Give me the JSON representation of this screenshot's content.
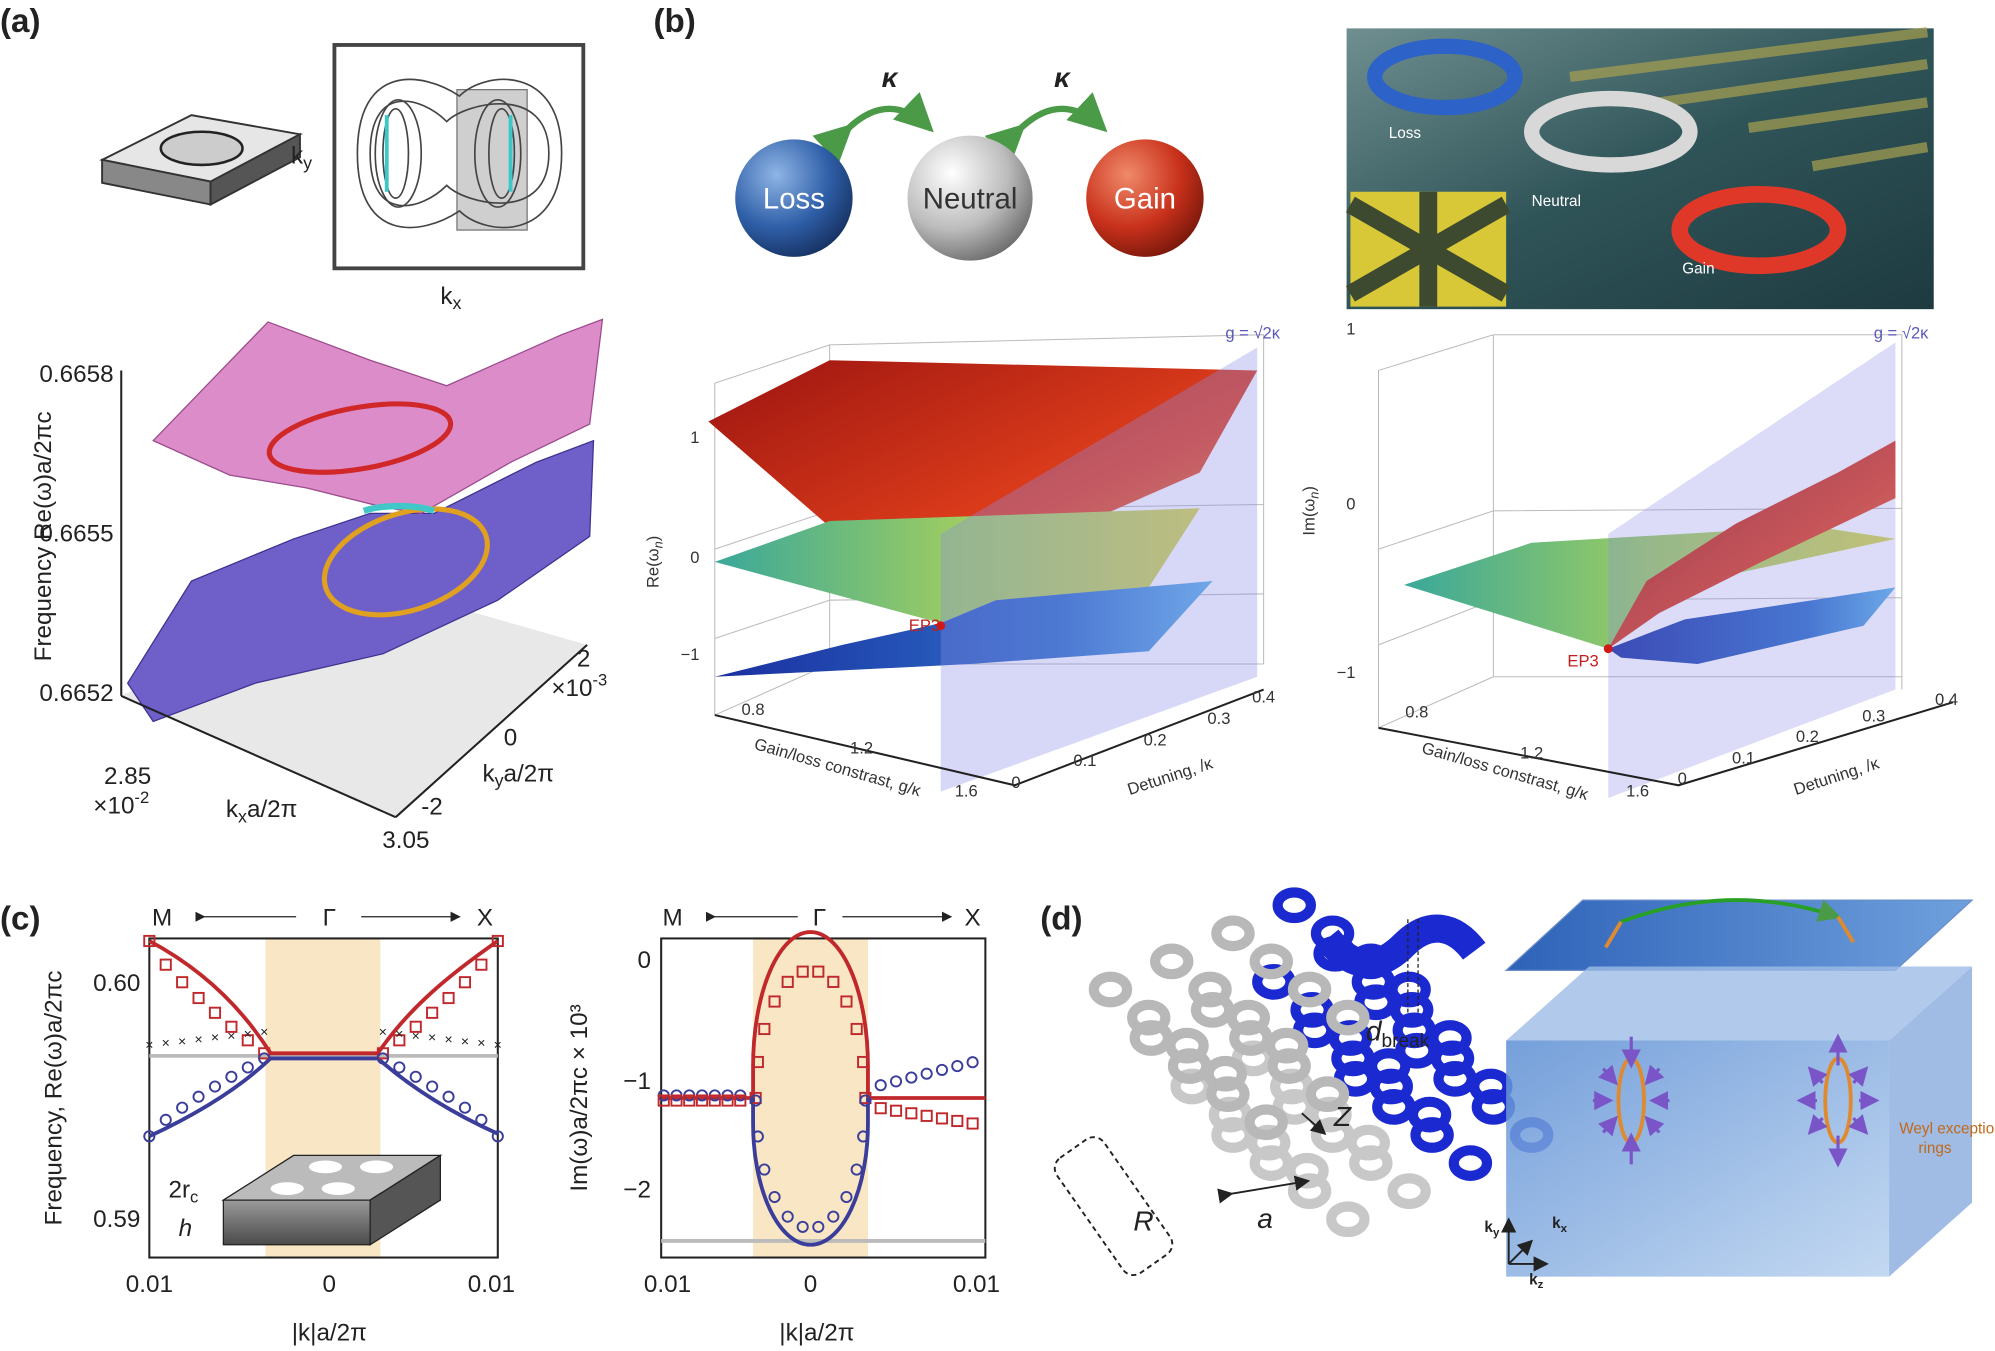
{
  "a": {
    "label": "(a)",
    "bz": {
      "ky": {
        "k": "k",
        "sub": "y"
      },
      "kx": {
        "k": "k",
        "sub": "x"
      }
    },
    "plot": {
      "zticks": [
        "0.6658",
        "0.6655",
        "0.6652"
      ],
      "zlabel": "Frequency Re(ω)a/2πc",
      "xticks": [
        "2.85",
        "3.05"
      ],
      "xscale": {
        "base": "×10",
        "exp": "-2"
      },
      "xlabel": {
        "k": "k",
        "sub": "x",
        "rest": "a/2π"
      },
      "yticks": [
        "2",
        "0",
        "-2"
      ],
      "yscale": {
        "base": "×10",
        "exp": "-3"
      },
      "ylabel": {
        "k": "k",
        "sub": "y",
        "rest": "a/2π"
      }
    }
  },
  "b": {
    "label": "(b)",
    "coupling": [
      "κ",
      "κ"
    ],
    "spheres": [
      "Loss",
      "Neutral",
      "Gain"
    ],
    "device": [
      "Loss",
      "Neutral",
      "Gain"
    ],
    "plots": [
      {
        "zlabel": {
          "base": "Re(ω",
          "sub": "n",
          "end": ")"
        },
        "zticks": [
          "1",
          "0",
          "−1"
        ],
        "ep": "EP3",
        "plane": "g = √2κ",
        "xticks": [
          "0.8",
          "1.2",
          "1.6"
        ],
        "xlabel": "Gain/loss constrast, g/κ",
        "yticks": [
          "0",
          "0.1",
          "0.2",
          "0.3",
          "0.4"
        ],
        "ylabel": "Detuning,  /κ"
      },
      {
        "zlabel": {
          "base": "Im(ω",
          "sub": "n",
          "end": ")"
        },
        "zticks": [
          "1",
          "0",
          "−1"
        ],
        "ep": "EP3",
        "plane": "g = √2κ",
        "xticks": [
          "0.8",
          "1.2",
          "1.6"
        ],
        "xlabel": "Gain/loss constrast, g/κ",
        "yticks": [
          "0",
          "0.1",
          "0.2",
          "0.3",
          "0.4"
        ],
        "ylabel": "Detuning,  /κ"
      }
    ]
  },
  "c": {
    "label": "(c)",
    "left": {
      "path": [
        "M",
        "Γ",
        "X"
      ],
      "yticks": [
        "0.60",
        "0.59"
      ],
      "ylabel": "Frequency, Re(ω)a/2πc",
      "xticks": [
        "0.01",
        "0",
        "0.01"
      ],
      "xlabel": "|k|a/2π",
      "inset": {
        "r": {
          "base": "2r",
          "sub": "c"
        },
        "h": "h"
      }
    },
    "right": {
      "path": [
        "M",
        "Γ",
        "X"
      ],
      "yticks": [
        "0",
        "−1",
        "−2"
      ],
      "ylabel": "Im(ω)a/2πc × 10³",
      "xticks": [
        "0.01",
        "0",
        "0.01"
      ],
      "xlabel": "|k|a/2π"
    }
  },
  "d": {
    "label": "(d)",
    "dbreak": {
      "base": "d",
      "sub": "break"
    },
    "z": "Z",
    "a": "a",
    "r": "R",
    "rings": [
      "Weyl exceptional",
      "rings"
    ],
    "axes": {
      "ky": {
        "k": "k",
        "sub": "y"
      },
      "kx": {
        "k": "k",
        "sub": "x"
      },
      "kz": {
        "k": "k",
        "sub": "z"
      }
    }
  }
}
